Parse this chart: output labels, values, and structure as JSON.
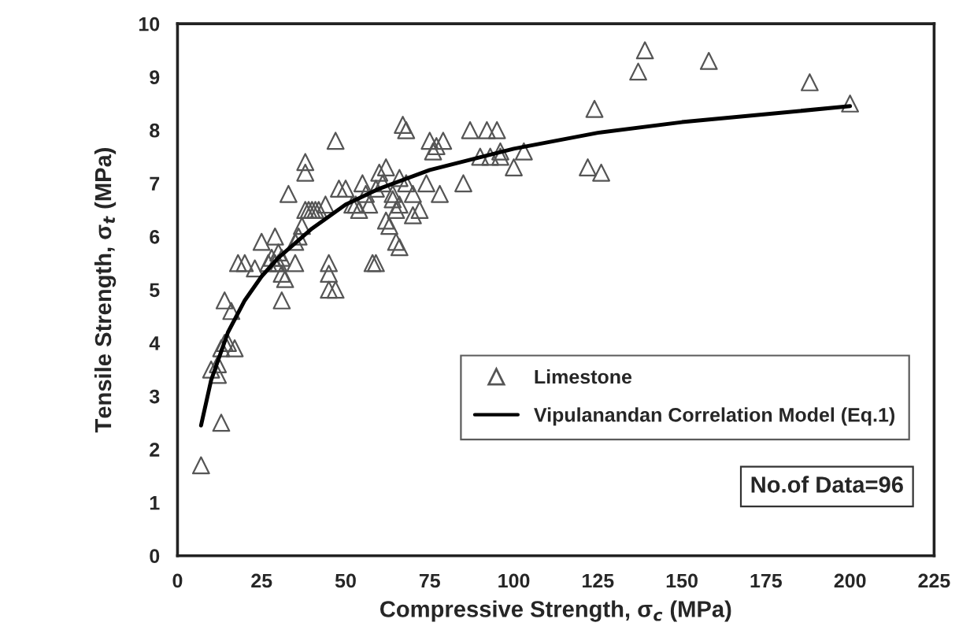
{
  "chart_data": {
    "type": "scatter",
    "xlabel": "Compressive Strength, σ$_{c}$ (MPa)",
    "ylabel": "Tensile Strength, σ$_{t}$ (MPa)",
    "xlim": [
      0,
      225
    ],
    "xticks": [
      0,
      25,
      50,
      75,
      100,
      125,
      150,
      175,
      200,
      225
    ],
    "ylim": [
      0,
      10
    ],
    "yticks": [
      0,
      1,
      2,
      3,
      4,
      5,
      6,
      7,
      8,
      9,
      10
    ],
    "grid": false,
    "legend": "bottom right",
    "annotations": [
      "No.of Data=96"
    ],
    "series": [
      {
        "name": "Limestone",
        "marker": "triangle",
        "color": "#555555",
        "x": [
          7,
          13,
          10,
          12,
          13,
          14,
          15,
          17,
          14,
          16,
          18,
          20,
          25,
          28,
          27,
          29,
          29,
          30,
          31,
          32,
          31,
          33,
          35,
          36,
          37,
          38,
          38,
          38,
          39,
          41,
          42,
          44,
          45,
          45,
          45,
          47,
          47,
          50,
          52,
          54,
          55,
          57,
          58,
          59,
          60,
          61,
          62,
          62,
          63,
          64,
          64,
          65,
          66,
          65,
          66,
          67,
          68,
          68,
          70,
          72,
          74,
          75,
          76,
          77,
          78,
          79,
          85,
          87,
          90,
          92,
          93,
          95,
          96,
          96,
          100,
          103,
          122,
          124,
          126,
          137,
          139,
          158,
          188,
          200,
          48,
          56,
          59,
          66,
          70,
          35,
          40,
          30,
          31,
          12,
          23,
          53
        ],
        "values": [
          1.7,
          2.5,
          3.5,
          3.6,
          3.9,
          4.0,
          4.0,
          3.9,
          4.8,
          4.6,
          5.5,
          5.5,
          5.9,
          5.6,
          5.5,
          5.5,
          6.0,
          5.5,
          5.3,
          5.2,
          4.8,
          6.8,
          5.9,
          6.0,
          6.2,
          6.5,
          7.2,
          7.4,
          6.5,
          6.5,
          6.5,
          6.6,
          5.5,
          5.3,
          5.0,
          5.0,
          7.8,
          6.9,
          6.6,
          6.5,
          7.0,
          6.6,
          5.5,
          5.5,
          7.2,
          7.0,
          7.3,
          6.3,
          6.2,
          6.8,
          6.7,
          6.5,
          6.6,
          5.9,
          5.8,
          8.1,
          8.0,
          7.0,
          6.8,
          6.5,
          7.0,
          7.8,
          7.6,
          7.7,
          6.8,
          7.8,
          7.0,
          8.0,
          7.5,
          8.0,
          7.5,
          8.0,
          7.6,
          7.5,
          7.3,
          7.6,
          7.3,
          8.4,
          7.2,
          9.1,
          9.5,
          9.3,
          8.9,
          8.5,
          6.9,
          6.8,
          6.9,
          7.1,
          6.4,
          5.5,
          6.5,
          5.7,
          5.6,
          3.4,
          5.4,
          6.6
        ]
      },
      {
        "name": "Vipulanandan Correlation Model (Eq.1)",
        "type": "line",
        "marker": "none",
        "line_style": "solid",
        "color": "#000000",
        "x": [
          7,
          10,
          15,
          20,
          25,
          30,
          40,
          50,
          60,
          75,
          100,
          125,
          150,
          175,
          200
        ],
        "values": [
          2.45,
          3.3,
          4.2,
          4.8,
          5.25,
          5.6,
          6.15,
          6.6,
          6.9,
          7.25,
          7.65,
          7.95,
          8.15,
          8.3,
          8.45
        ]
      }
    ]
  }
}
